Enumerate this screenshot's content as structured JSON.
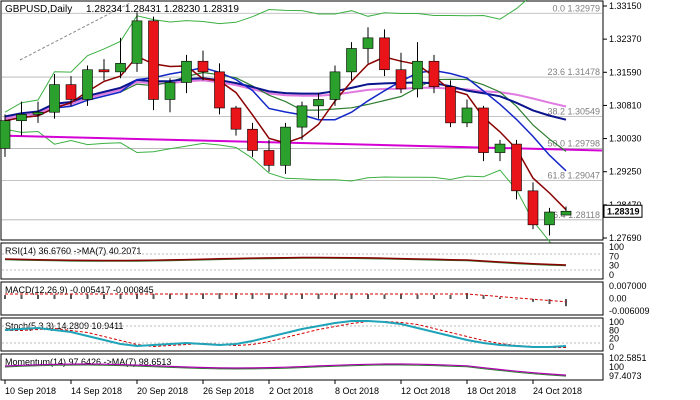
{
  "header": {
    "symbol": "GBPUSD,Daily",
    "ohlc": "1.28234 1.28431 1.28230 1.28319"
  },
  "colors": {
    "bull": "#2ca02c",
    "bear": "#e8141a",
    "bollinger": "#3cb043",
    "ma_fast": "#8b0000",
    "ma_mid": "#1428c8",
    "ma_slow": "#0a148c",
    "ma_pink": "#e07ae0",
    "ma_magenta": "#d400d4",
    "ma_green": "#2e7d32"
  },
  "price_axis": {
    "labels": [
      "1.33150",
      "1.32370",
      "1.31590",
      "1.30810",
      "1.30030",
      "1.29250",
      "1.28470",
      "1.27690"
    ],
    "current": "1.28319"
  },
  "fibonacci": [
    {
      "label": "0.0 1.32979",
      "price": 1.32979
    },
    {
      "label": "23.6 1.31478",
      "price": 1.31478
    },
    {
      "label": "38.2 1.30549",
      "price": 1.30549
    },
    {
      "label": "50.0 1.29798",
      "price": 1.29798
    },
    {
      "label": "61.8 1.29047",
      "price": 1.29047
    },
    {
      "label": "76.4 1.28118",
      "price": 1.28118
    }
  ],
  "x_axis": {
    "labels": [
      "10 Sep 2018",
      "14 Sep 2018",
      "20 Sep 2018",
      "26 Sep 2018",
      "2 Oct 2018",
      "8 Oct 2018",
      "12 Oct 2018",
      "18 Oct 2018",
      "24 Oct 2018"
    ],
    "label_bars": [
      0,
      4,
      8,
      12,
      16,
      20,
      24,
      28,
      32
    ]
  },
  "candles": [
    {
      "o": 1.298,
      "h": 1.306,
      "l": 1.296,
      "c": 1.3045
    },
    {
      "o": 1.3045,
      "h": 1.309,
      "l": 1.301,
      "c": 1.306
    },
    {
      "o": 1.306,
      "h": 1.309,
      "l": 1.304,
      "c": 1.3065
    },
    {
      "o": 1.3065,
      "h": 1.3155,
      "l": 1.305,
      "c": 1.313
    },
    {
      "o": 1.313,
      "h": 1.315,
      "l": 1.308,
      "c": 1.3095
    },
    {
      "o": 1.3095,
      "h": 1.3175,
      "l": 1.308,
      "c": 1.3165
    },
    {
      "o": 1.3165,
      "h": 1.319,
      "l": 1.314,
      "c": 1.316
    },
    {
      "o": 1.316,
      "h": 1.324,
      "l": 1.3145,
      "c": 1.318
    },
    {
      "o": 1.318,
      "h": 1.33,
      "l": 1.316,
      "c": 1.328
    },
    {
      "o": 1.328,
      "h": 1.329,
      "l": 1.307,
      "c": 1.3095
    },
    {
      "o": 1.3095,
      "h": 1.3145,
      "l": 1.3065,
      "c": 1.3135
    },
    {
      "o": 1.3135,
      "h": 1.32,
      "l": 1.311,
      "c": 1.3185
    },
    {
      "o": 1.3185,
      "h": 1.321,
      "l": 1.314,
      "c": 1.316
    },
    {
      "o": 1.316,
      "h": 1.318,
      "l": 1.306,
      "c": 1.3075
    },
    {
      "o": 1.3075,
      "h": 1.308,
      "l": 1.301,
      "c": 1.3025
    },
    {
      "o": 1.3025,
      "h": 1.304,
      "l": 1.296,
      "c": 1.2975
    },
    {
      "o": 1.2975,
      "h": 1.3,
      "l": 1.2925,
      "c": 1.294
    },
    {
      "o": 1.294,
      "h": 1.304,
      "l": 1.292,
      "c": 1.303
    },
    {
      "o": 1.303,
      "h": 1.309,
      "l": 1.3,
      "c": 1.308
    },
    {
      "o": 1.308,
      "h": 1.311,
      "l": 1.305,
      "c": 1.3095
    },
    {
      "o": 1.3095,
      "h": 1.3175,
      "l": 1.308,
      "c": 1.316
    },
    {
      "o": 1.316,
      "h": 1.323,
      "l": 1.314,
      "c": 1.3215
    },
    {
      "o": 1.3215,
      "h": 1.3265,
      "l": 1.318,
      "c": 1.324
    },
    {
      "o": 1.324,
      "h": 1.326,
      "l": 1.315,
      "c": 1.3165
    },
    {
      "o": 1.3165,
      "h": 1.3205,
      "l": 1.311,
      "c": 1.312
    },
    {
      "o": 1.312,
      "h": 1.323,
      "l": 1.31,
      "c": 1.3185
    },
    {
      "o": 1.3185,
      "h": 1.32,
      "l": 1.311,
      "c": 1.3125
    },
    {
      "o": 1.3125,
      "h": 1.314,
      "l": 1.303,
      "c": 1.304
    },
    {
      "o": 1.304,
      "h": 1.3095,
      "l": 1.303,
      "c": 1.3075
    },
    {
      "o": 1.3075,
      "h": 1.308,
      "l": 1.295,
      "c": 1.297
    },
    {
      "o": 1.297,
      "h": 1.3,
      "l": 1.295,
      "c": 1.299
    },
    {
      "o": 1.299,
      "h": 1.3,
      "l": 1.286,
      "c": 1.288
    },
    {
      "o": 1.288,
      "h": 1.29,
      "l": 1.279,
      "c": 1.28
    },
    {
      "o": 1.28,
      "h": 1.284,
      "l": 1.2775,
      "c": 1.283
    },
    {
      "o": 1.2823,
      "h": 1.2843,
      "l": 1.2823,
      "c": 1.2832
    }
  ],
  "indicators": {
    "rsi": {
      "label": "RSI(14) 36.6760 ->MA(7) 40.2071",
      "scale": [
        "100",
        "70",
        "30",
        "0"
      ]
    },
    "macd": {
      "label": "MACD(12,26,9) -0.005417 -0.000845",
      "scale": [
        "0.007000",
        "0.00",
        "-0.006009"
      ]
    },
    "stoch": {
      "label": "Stoch(5,3,3) 14.2809 10.9411",
      "scale": [
        "100",
        "80",
        "20",
        "0"
      ]
    },
    "momentum": {
      "label": "Momentum(14) 97.6426 ->MA(7) 98.6513",
      "scale": [
        "102.5851",
        "100",
        "97.4073"
      ]
    }
  }
}
